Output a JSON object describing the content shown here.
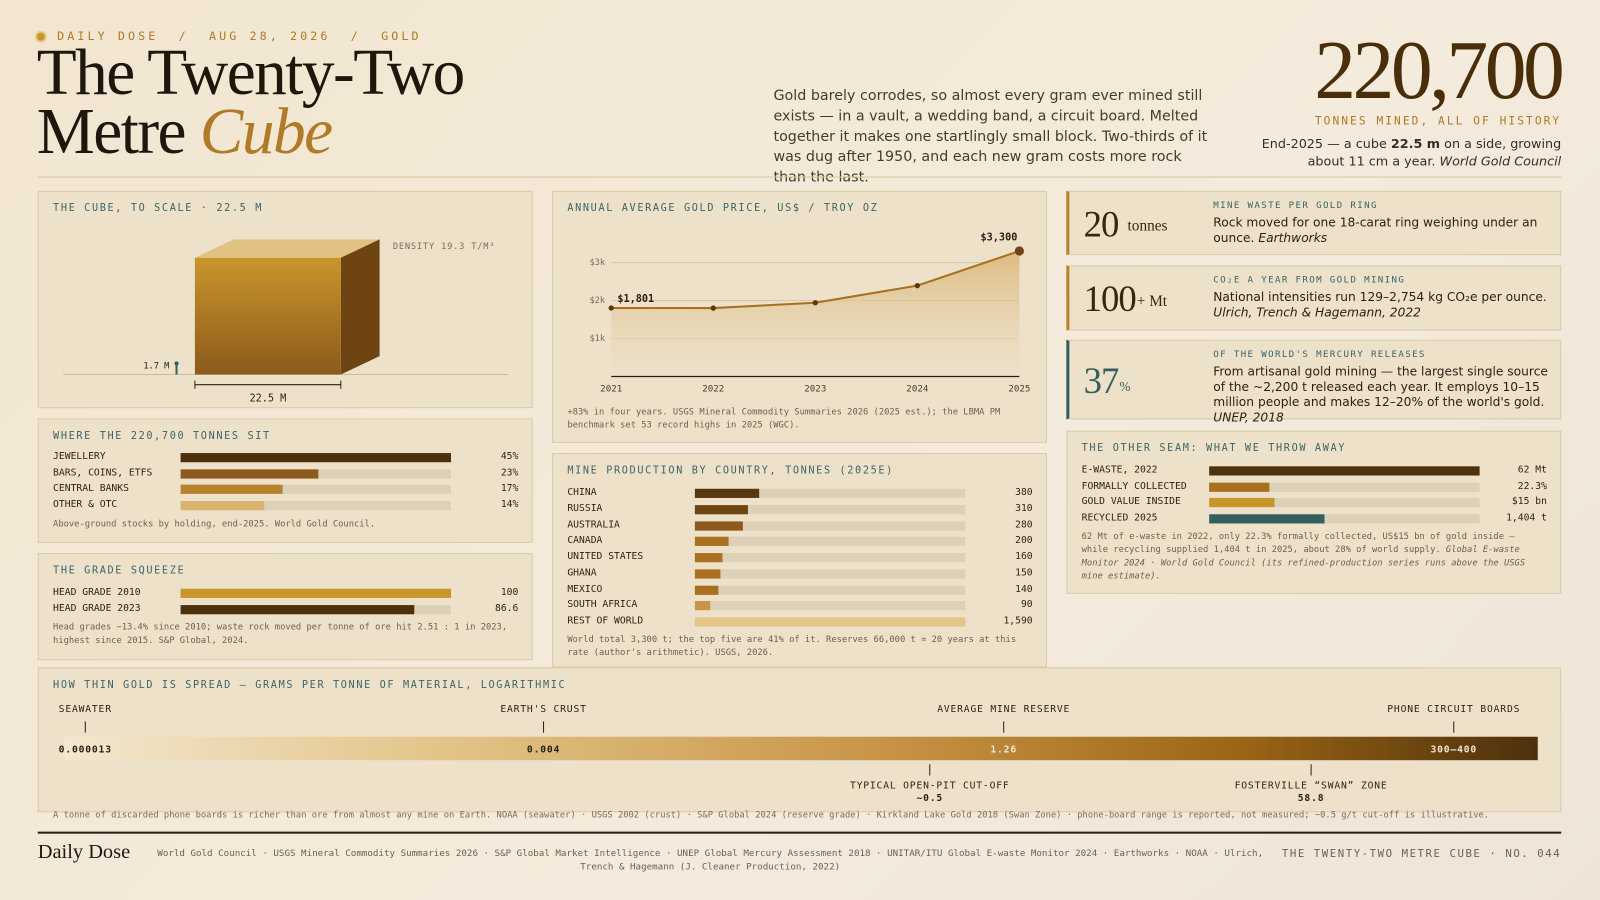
{
  "header": {
    "kicker": "DAILY DOSE  /  AUG 28, 2026  /  GOLD",
    "title_line1": "The Twenty-Two",
    "title_line2": "Metre",
    "title_emphasis": "Cube",
    "intro": "Gold barely corrodes, so almost every gram ever mined still exists — in a vault, a wedding band, a circuit board. Melted together it makes one startlingly small block. Two-thirds of it was dug after 1950, and each new gram costs more rock than the last.",
    "hero_value": "220,700",
    "hero_caption": "TONNES MINED, ALL OF HISTORY",
    "hero_note": [
      "End-2025 — a cube ",
      "22.5 m",
      " on a side, growing about 11 cm a year. ",
      "World Gold Council"
    ]
  },
  "cube": {
    "title": "THE CUBE, TO SCALE · 22.5 M",
    "side": 22.5,
    "side_label": "22.5 M",
    "person": 1.7,
    "person_label": "1.7 M",
    "density_label": "DENSITY 19.3 T/M³"
  },
  "chart_data": [
    {
      "type": "bar",
      "title": "WHERE THE 220,700 TONNES SIT",
      "categories": [
        "JEWELLERY",
        "BARS, COINS, ETFS",
        "CENTRAL BANKS",
        "OTHER & OTC"
      ],
      "values": [
        45,
        23,
        17,
        14
      ],
      "value_labels": [
        "45%",
        "23%",
        "17%",
        "14%"
      ],
      "colors": [
        "#4d300c",
        "#8c5a1c",
        "#b8822e",
        "#d9b36e"
      ],
      "xlim": [
        0,
        45
      ],
      "note": "Above-ground stocks by holding, end-2025. World Gold Council."
    },
    {
      "type": "bar",
      "title": "THE GRADE SQUEEZE",
      "categories": [
        "HEAD GRADE 2010",
        "HEAD GRADE 2023"
      ],
      "values": [
        100,
        86.6
      ],
      "colors": [
        "#c8962a",
        "#4d300c"
      ],
      "xlim": [
        0,
        100
      ],
      "note": "Head grades −13.4% since 2010; waste rock moved per tonne of ore hit 2.51 : 1 in 2023, highest since 2015. S&P Global, 2024."
    },
    {
      "type": "line",
      "title": "ANNUAL AVERAGE GOLD PRICE, US$ / TROY OZ",
      "x": [
        2021,
        2022,
        2023,
        2024,
        2025
      ],
      "values": [
        1801,
        1800,
        1940,
        2390,
        3300
      ],
      "value_labels": [
        "$1,801",
        null,
        null,
        null,
        "$3,300"
      ],
      "color": "#a8701f",
      "xlim": [
        2021,
        2025
      ],
      "xticks": [
        2021,
        2022,
        2023,
        2024,
        2025
      ],
      "ylim": [
        0,
        3300
      ],
      "yticks": [
        {
          "value": 1000,
          "label": "$1k"
        },
        {
          "value": 2000,
          "label": "$2k"
        },
        {
          "value": 3000,
          "label": "$3k"
        }
      ],
      "grid": true,
      "note": "+83% in four years. USGS Mineral Commodity Summaries 2026 (2025 est.); the LBMA PM benchmark set 53 record highs in 2025 (WGC)."
    },
    {
      "type": "bar",
      "title": "MINE PRODUCTION BY COUNTRY, TONNES (2025E)",
      "categories": [
        "CHINA",
        "RUSSIA",
        "AUSTRALIA",
        "CANADA",
        "UNITED STATES",
        "GHANA",
        "MEXICO",
        "SOUTH AFRICA",
        "REST OF WORLD"
      ],
      "values": [
        380,
        310,
        280,
        200,
        160,
        150,
        140,
        90,
        1590
      ],
      "value_labels": [
        null,
        null,
        null,
        null,
        null,
        null,
        null,
        null,
        "1,590"
      ],
      "colors": [
        "#5a380f",
        "#6e4412",
        "#8c5a1c",
        "#a8701f",
        "#a8701f",
        "#a8701f",
        "#a8701f",
        "#c89548",
        "#e3c58a"
      ],
      "xlim": [
        0,
        1590
      ],
      "note": "World total 3,300 t; the top five are 41% of it. Reserves 66,000 t = 20 years at this rate (author's arithmetic). USGS, 2026."
    },
    {
      "type": "bar",
      "title": "THE OTHER SEAM: WHAT WE THROW AWAY",
      "categories": [
        "E-WASTE, 2022",
        "FORMALLY COLLECTED",
        "GOLD VALUE INSIDE",
        "RECYCLED 2025"
      ],
      "values": [
        62,
        22.3,
        15,
        1404
      ],
      "value_labels": [
        "62 Mt",
        "22.3%",
        "$15 bn",
        "1,404 t"
      ],
      "colors": [
        "#4d300c",
        "#a8701f",
        "#c8962a",
        "#33605f"
      ],
      "xlims": [
        [
          0,
          62
        ],
        [
          0,
          100
        ],
        [
          0,
          62
        ],
        [
          0,
          3300
        ]
      ],
      "note": "62 Mt of e-waste in 2022, only 22.3% formally collected, US$15 bn of gold inside — while recycling supplied 1,404 t in 2025, about 28% of world supply. ",
      "note_source": "Global E-waste Monitor 2024 · World Gold Council (its refined-production series runs above the USGS mine estimate)."
    },
    {
      "type": "strip",
      "title": "HOW THIN GOLD IS SPREAD — GRAMS PER TONNE OF MATERIAL, LOGARITHMIC",
      "log": true,
      "xlim": [
        1e-05,
        1000
      ],
      "markers": [
        {
          "name": "SEAWATER",
          "value": 1.3e-05,
          "position": "above"
        },
        {
          "name": "EARTH'S CRUST",
          "value": 0.004,
          "position": "above"
        },
        {
          "name": "AVERAGE MINE RESERVE",
          "value": 1.26,
          "position": "above"
        },
        {
          "name": "PHONE CIRCUIT BOARDS",
          "value": 350,
          "value_label": "300–400",
          "position": "above"
        },
        {
          "name": "TYPICAL OPEN-PIT CUT-OFF",
          "value": 0.5,
          "value_label": "~0.5",
          "position": "below"
        },
        {
          "name": "FOSTERVILLE “SWAN” ZONE",
          "value": 58.8,
          "position": "below"
        }
      ],
      "note": "A tonne of discarded phone boards is richer than ore from almost any mine on Earth. NOAA (seawater) · USGS 2002 (crust) · S&P Global 2024 (reserve grade) · Kirkland Lake Gold 2018 (Swan Zone) · phone-board range is reported, not measured; ~0.5 g/t cut-off is illustrative."
    }
  ],
  "cards": [
    {
      "value": "20",
      "unit": "tonnes",
      "label": "MINE WASTE PER GOLD RING",
      "text": "Rock moved for one 18-carat ring weighing under an ounce. ",
      "source": "Earthworks",
      "accent": "#b8822e"
    },
    {
      "value": "100",
      "unit": "+ Mt",
      "label": "CO₂E A YEAR FROM GOLD MINING",
      "text": "National intensities run 129–2,754 kg CO₂e per ounce. ",
      "source": "Ulrich, Trench & Hagemann, 2022",
      "accent": "#b8822e"
    },
    {
      "value": "37",
      "unit": "%",
      "label": "OF THE WORLD'S MERCURY RELEASES",
      "text": "From artisanal gold mining — the largest single source of the ~2,200 t released each year. It employs 10–15 million people and makes 12–20% of the world's gold. ",
      "source": "UNEP, 2018",
      "accent": "#33605f"
    }
  ],
  "footer": {
    "brand": "Daily Dose",
    "sources": "World Gold Council · USGS Mineral Commodity Summaries 2026 · S&P Global Market Intelligence · UNEP Global Mercury Assessment 2018 · UNITAR/ITU Global E-waste Monitor 2024 · Earthworks · NOAA · Ulrich, Trench & Hagemann (J. Cleaner Production, 2022)",
    "issue": "THE TWENTY-TWO METRE CUBE · NO. 044"
  }
}
